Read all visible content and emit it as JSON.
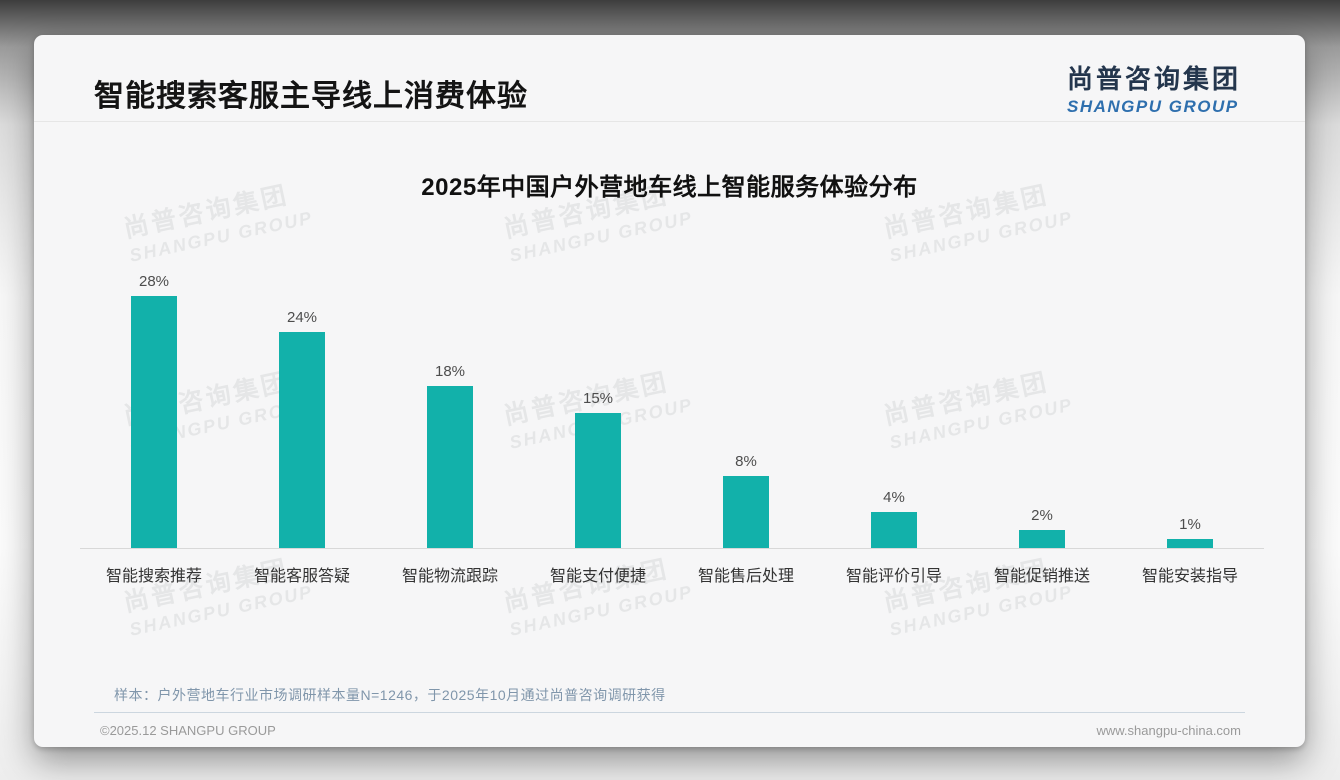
{
  "header": {
    "title": "智能搜索客服主导线上消费体验",
    "logo_zh": "尚普咨询集团",
    "logo_en": "SHANGPU GROUP"
  },
  "watermark": {
    "zh": "尚普咨询集团",
    "en": "SHANGPU GROUP"
  },
  "chart_data": {
    "type": "bar",
    "title": "2025年中国户外营地车线上智能服务体验分布",
    "categories": [
      "智能搜索推荐",
      "智能客服答疑",
      "智能物流跟踪",
      "智能支付便捷",
      "智能售后处理",
      "智能评价引导",
      "智能促销推送",
      "智能安装指导"
    ],
    "values": [
      28,
      24,
      18,
      15,
      8,
      4,
      2,
      1
    ],
    "unit": "%",
    "value_labels": true,
    "bar_color": "#12b1aa",
    "ylim": [
      0,
      30
    ],
    "grid": false,
    "legend": "none",
    "xlabel": "",
    "ylabel": ""
  },
  "note": "样本：户外营地车行业市场调研样本量N=1246，于2025年10月通过尚普咨询调研获得",
  "footer": {
    "left": "©2025.12 SHANGPU GROUP",
    "right": "www.shangpu-china.com"
  },
  "colors": {
    "bar": "#12b1aa",
    "logo_navy": "#24364d",
    "logo_blue": "#2e6fae",
    "note_text": "#8096ab",
    "card_bg": "#f6f6f7"
  }
}
